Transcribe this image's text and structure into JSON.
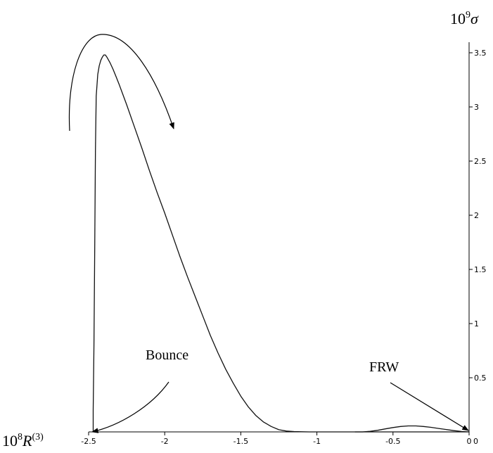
{
  "chart_data": {
    "type": "line",
    "title": "",
    "xlabel": {
      "prefix": "10",
      "exp": "8",
      "var": "R",
      "sup": "(3)"
    },
    "ylabel": {
      "prefix": "10",
      "exp": "9",
      "var": "σ"
    },
    "xlim": [
      -2.5,
      0
    ],
    "ylim": [
      0,
      3.55
    ],
    "x_ticks": [
      -2.5,
      -2,
      -1.5,
      -1,
      -0.5,
      0
    ],
    "x_tick_labels": [
      "-2.5",
      "-2",
      "-1.5",
      "-1",
      "-0.5",
      "0"
    ],
    "y_ticks": [
      0.5,
      1,
      1.5,
      2,
      2.5,
      3,
      3.5
    ],
    "y_tick_labels": [
      "0.5",
      "1",
      "1.5",
      "2",
      "2.5",
      "3",
      "3.5"
    ],
    "grid": false,
    "series": [
      {
        "x": [
          -2.47,
          -2.47,
          -2.465,
          -2.46,
          -2.455,
          -2.45,
          -2.44,
          -2.43,
          -2.42,
          -2.41,
          -2.4,
          -2.39,
          -2.38,
          -2.36,
          -2.34,
          -2.32,
          -2.3,
          -2.25,
          -2.2,
          -2.15,
          -2.1,
          -2.05,
          -2.0,
          -1.95,
          -1.9,
          -1.85,
          -1.8,
          -1.75,
          -1.7,
          -1.65,
          -1.6,
          -1.55,
          -1.5,
          -1.45,
          -1.4,
          -1.35,
          -1.3,
          -1.25,
          -1.2,
          -1.15,
          -1.1,
          -1.05,
          -1.0,
          -0.95,
          -0.9,
          -0.85,
          -0.8,
          -0.75,
          -0.72,
          -0.7,
          -0.65,
          -0.6,
          -0.55,
          -0.5,
          -0.45,
          -0.4,
          -0.35,
          -0.3,
          -0.25,
          -0.2,
          -0.15,
          -0.1,
          -0.05,
          -0.02,
          0.0
        ],
        "y": [
          0.0,
          0.2,
          0.8,
          1.7,
          2.6,
          3.1,
          3.3,
          3.38,
          3.43,
          3.46,
          3.48,
          3.48,
          3.46,
          3.41,
          3.35,
          3.28,
          3.21,
          3.02,
          2.82,
          2.62,
          2.41,
          2.21,
          2.02,
          1.82,
          1.62,
          1.43,
          1.25,
          1.07,
          0.89,
          0.73,
          0.58,
          0.45,
          0.33,
          0.23,
          0.15,
          0.09,
          0.05,
          0.02,
          0.008,
          0.003,
          0.001,
          0.0,
          0.0,
          0.0,
          0.0,
          0.0,
          0.0,
          0.0,
          0.0,
          0.0,
          0.0,
          0.0,
          0.0,
          0.0,
          0.0,
          0.0,
          0.0,
          0.0,
          0.0,
          0.0,
          0.0,
          0.0,
          0.0,
          0.0,
          0.0
        ]
      },
      {
        "x": [
          -0.75,
          -0.7,
          -0.65,
          -0.6,
          -0.55,
          -0.5,
          -0.45,
          -0.4,
          -0.35,
          -0.3,
          -0.25,
          -0.2,
          -0.15,
          -0.1,
          -0.05,
          0.0
        ],
        "y": [
          0.0,
          0.0,
          0.005,
          0.015,
          0.028,
          0.04,
          0.05,
          0.055,
          0.055,
          0.05,
          0.042,
          0.032,
          0.022,
          0.012,
          0.004,
          0.0
        ]
      }
    ],
    "annotations": [
      "Bounce",
      "FRW"
    ]
  }
}
